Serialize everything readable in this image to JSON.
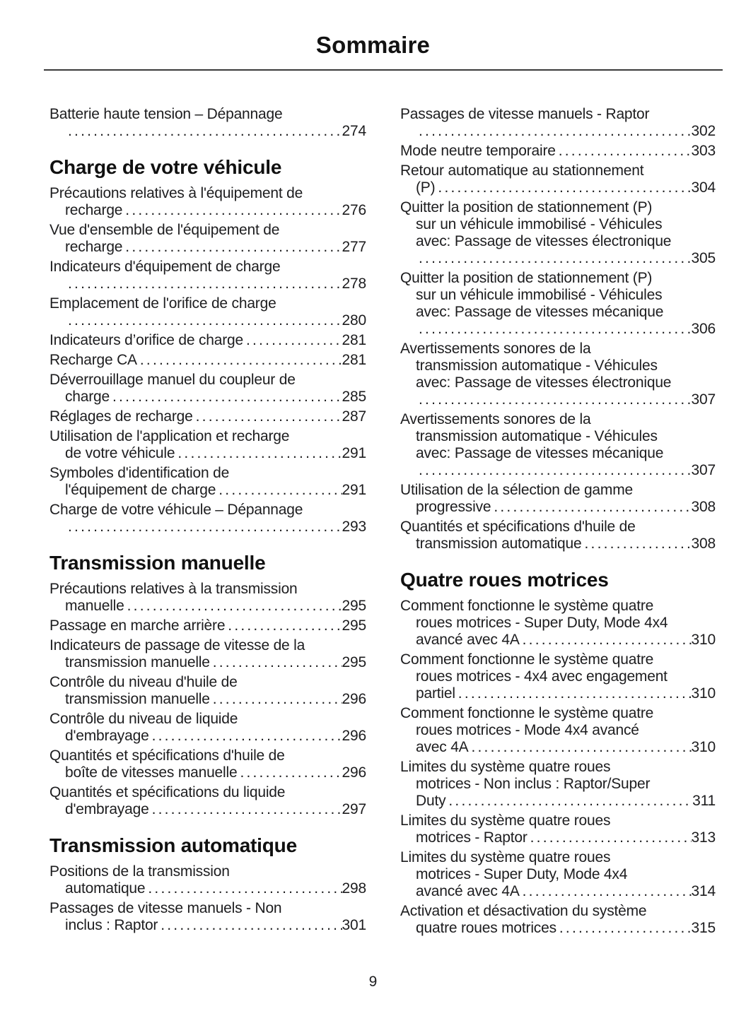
{
  "page": {
    "title": "Sommaire",
    "page_number": "9"
  },
  "style": {
    "text_color": "#1d1d1f",
    "heading_color": "#101010",
    "rule_color": "#3a3a3a",
    "background": "#ffffff"
  },
  "columns": [
    {
      "blocks": [
        {
          "type": "entry",
          "lines": [
            "Batterie haute tension – Dépannage"
          ],
          "leader_text": "",
          "page": "274"
        },
        {
          "type": "heading",
          "text": "Charge de votre véhicule"
        },
        {
          "type": "entry",
          "lines": [
            "Précautions relatives à l'équipement de"
          ],
          "leader_text": "recharge",
          "page": "276"
        },
        {
          "type": "entry",
          "lines": [
            "Vue d'ensemble de l'équipement de"
          ],
          "leader_text": "recharge",
          "page": "277"
        },
        {
          "type": "entry",
          "lines": [
            "Indicateurs d'équipement de charge"
          ],
          "leader_text": "",
          "page": "278"
        },
        {
          "type": "entry",
          "lines": [
            "Emplacement de l'orifice de charge"
          ],
          "leader_text": "",
          "page": "280"
        },
        {
          "type": "entry",
          "lines": [],
          "leader_text": "Indicateurs d’orifice de charge",
          "page": "281"
        },
        {
          "type": "entry",
          "lines": [],
          "leader_text": "Recharge CA",
          "page": "281"
        },
        {
          "type": "entry",
          "lines": [
            "Déverrouillage manuel du coupleur de"
          ],
          "leader_text": "charge",
          "page": "285"
        },
        {
          "type": "entry",
          "lines": [],
          "leader_text": "Réglages de recharge",
          "page": "287"
        },
        {
          "type": "entry",
          "lines": [
            "Utilisation de l'application et recharge"
          ],
          "leader_text": "de votre véhicule",
          "page": "291"
        },
        {
          "type": "entry",
          "lines": [
            "Symboles d'identification de"
          ],
          "leader_text": "l'équipement de charge",
          "page": "291"
        },
        {
          "type": "entry",
          "lines": [
            "Charge de votre véhicule – Dépannage"
          ],
          "leader_text": "",
          "page": "293"
        },
        {
          "type": "heading",
          "text": "Transmission manuelle"
        },
        {
          "type": "entry",
          "lines": [
            "Précautions relatives à la transmission"
          ],
          "leader_text": "manuelle",
          "page": "295"
        },
        {
          "type": "entry",
          "lines": [],
          "leader_text": "Passage en marche arrière",
          "page": "295"
        },
        {
          "type": "entry",
          "lines": [
            "Indicateurs de passage de vitesse de la"
          ],
          "leader_text": "transmission manuelle",
          "page": "295"
        },
        {
          "type": "entry",
          "lines": [
            "Contrôle du niveau d'huile de"
          ],
          "leader_text": "transmission manuelle",
          "page": "296"
        },
        {
          "type": "entry",
          "lines": [
            "Contrôle du niveau de liquide"
          ],
          "leader_text": "d'embrayage",
          "page": "296"
        },
        {
          "type": "entry",
          "lines": [
            "Quantités et spécifications d'huile de"
          ],
          "leader_text": "boîte de vitesses manuelle",
          "page": "296"
        },
        {
          "type": "entry",
          "lines": [
            "Quantités et spécifications du liquide"
          ],
          "leader_text": "d'embrayage",
          "page": "297"
        },
        {
          "type": "heading",
          "text": "Transmission automatique"
        },
        {
          "type": "entry",
          "lines": [
            "Positions de la transmission"
          ],
          "leader_text": "automatique",
          "page": "298"
        },
        {
          "type": "entry",
          "lines": [
            "Passages de vitesse manuels - Non"
          ],
          "leader_text": "inclus : Raptor",
          "page": "301"
        }
      ]
    },
    {
      "blocks": [
        {
          "type": "entry",
          "lines": [
            "Passages de vitesse manuels - Raptor"
          ],
          "leader_text": "",
          "page": "302"
        },
        {
          "type": "entry",
          "lines": [],
          "leader_text": "Mode neutre temporaire",
          "page": "303"
        },
        {
          "type": "entry",
          "lines": [
            "Retour automatique au stationnement"
          ],
          "leader_text": "(P)",
          "page": "304"
        },
        {
          "type": "entry",
          "lines": [
            "Quitter la position de stationnement (P)",
            "sur un véhicule immobilisé - Véhicules",
            "avec: Passage de vitesses électronique"
          ],
          "leader_text": "",
          "page": "305"
        },
        {
          "type": "entry",
          "lines": [
            "Quitter la position de stationnement (P)",
            "sur un véhicule immobilisé - Véhicules",
            "avec: Passage de vitesses mécanique"
          ],
          "leader_text": "",
          "page": "306"
        },
        {
          "type": "entry",
          "lines": [
            "Avertissements sonores de la",
            "transmission automatique - Véhicules",
            "avec: Passage de vitesses électronique"
          ],
          "leader_text": "",
          "page": "307"
        },
        {
          "type": "entry",
          "lines": [
            "Avertissements sonores de la",
            "transmission automatique - Véhicules",
            "avec: Passage de vitesses mécanique"
          ],
          "leader_text": "",
          "page": "307"
        },
        {
          "type": "entry",
          "lines": [
            "Utilisation de la sélection de gamme"
          ],
          "leader_text": "progressive",
          "page": "308"
        },
        {
          "type": "entry",
          "lines": [
            "Quantités et spécifications d'huile de"
          ],
          "leader_text": "transmission automatique",
          "page": "308"
        },
        {
          "type": "heading",
          "text": "Quatre roues motrices"
        },
        {
          "type": "entry",
          "lines": [
            "Comment fonctionne le système quatre",
            "roues motrices - Super Duty, Mode 4x4"
          ],
          "leader_text": "avancé avec 4A",
          "page": "310"
        },
        {
          "type": "entry",
          "lines": [
            "Comment fonctionne le système quatre",
            "roues motrices - 4x4 avec engagement"
          ],
          "leader_text": "partiel",
          "page": "310"
        },
        {
          "type": "entry",
          "lines": [
            "Comment fonctionne le système quatre",
            "roues motrices - Mode 4x4 avancé"
          ],
          "leader_text": "avec 4A",
          "page": "310"
        },
        {
          "type": "entry",
          "lines": [
            "Limites du système quatre roues",
            "motrices - Non inclus : Raptor/Super"
          ],
          "leader_text": "Duty",
          "page": "311"
        },
        {
          "type": "entry",
          "lines": [
            "Limites du système quatre roues"
          ],
          "leader_text": "motrices - Raptor",
          "page": "313"
        },
        {
          "type": "entry",
          "lines": [
            "Limites du système quatre roues",
            "motrices - Super Duty, Mode 4x4"
          ],
          "leader_text": "avancé avec 4A",
          "page": "314"
        },
        {
          "type": "entry",
          "lines": [
            "Activation et désactivation du système"
          ],
          "leader_text": "quatre roues motrices",
          "page": "315"
        }
      ]
    }
  ]
}
